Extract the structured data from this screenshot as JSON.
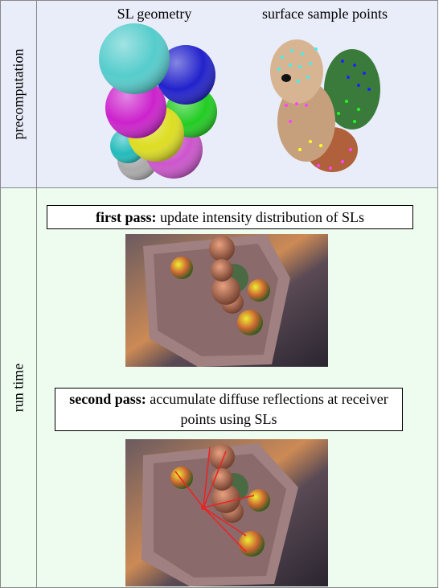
{
  "panels": [
    {
      "label": "precomputation",
      "captions": [
        "SL geometry",
        "surface sample points"
      ]
    },
    {
      "label": "run time",
      "steps": [
        {
          "bold": "first pass:",
          "text": "update intensity distribution of SLs"
        },
        {
          "bold": "second pass:",
          "text": "accumulate diffuse reflections at receiver points using SLs"
        }
      ]
    }
  ]
}
